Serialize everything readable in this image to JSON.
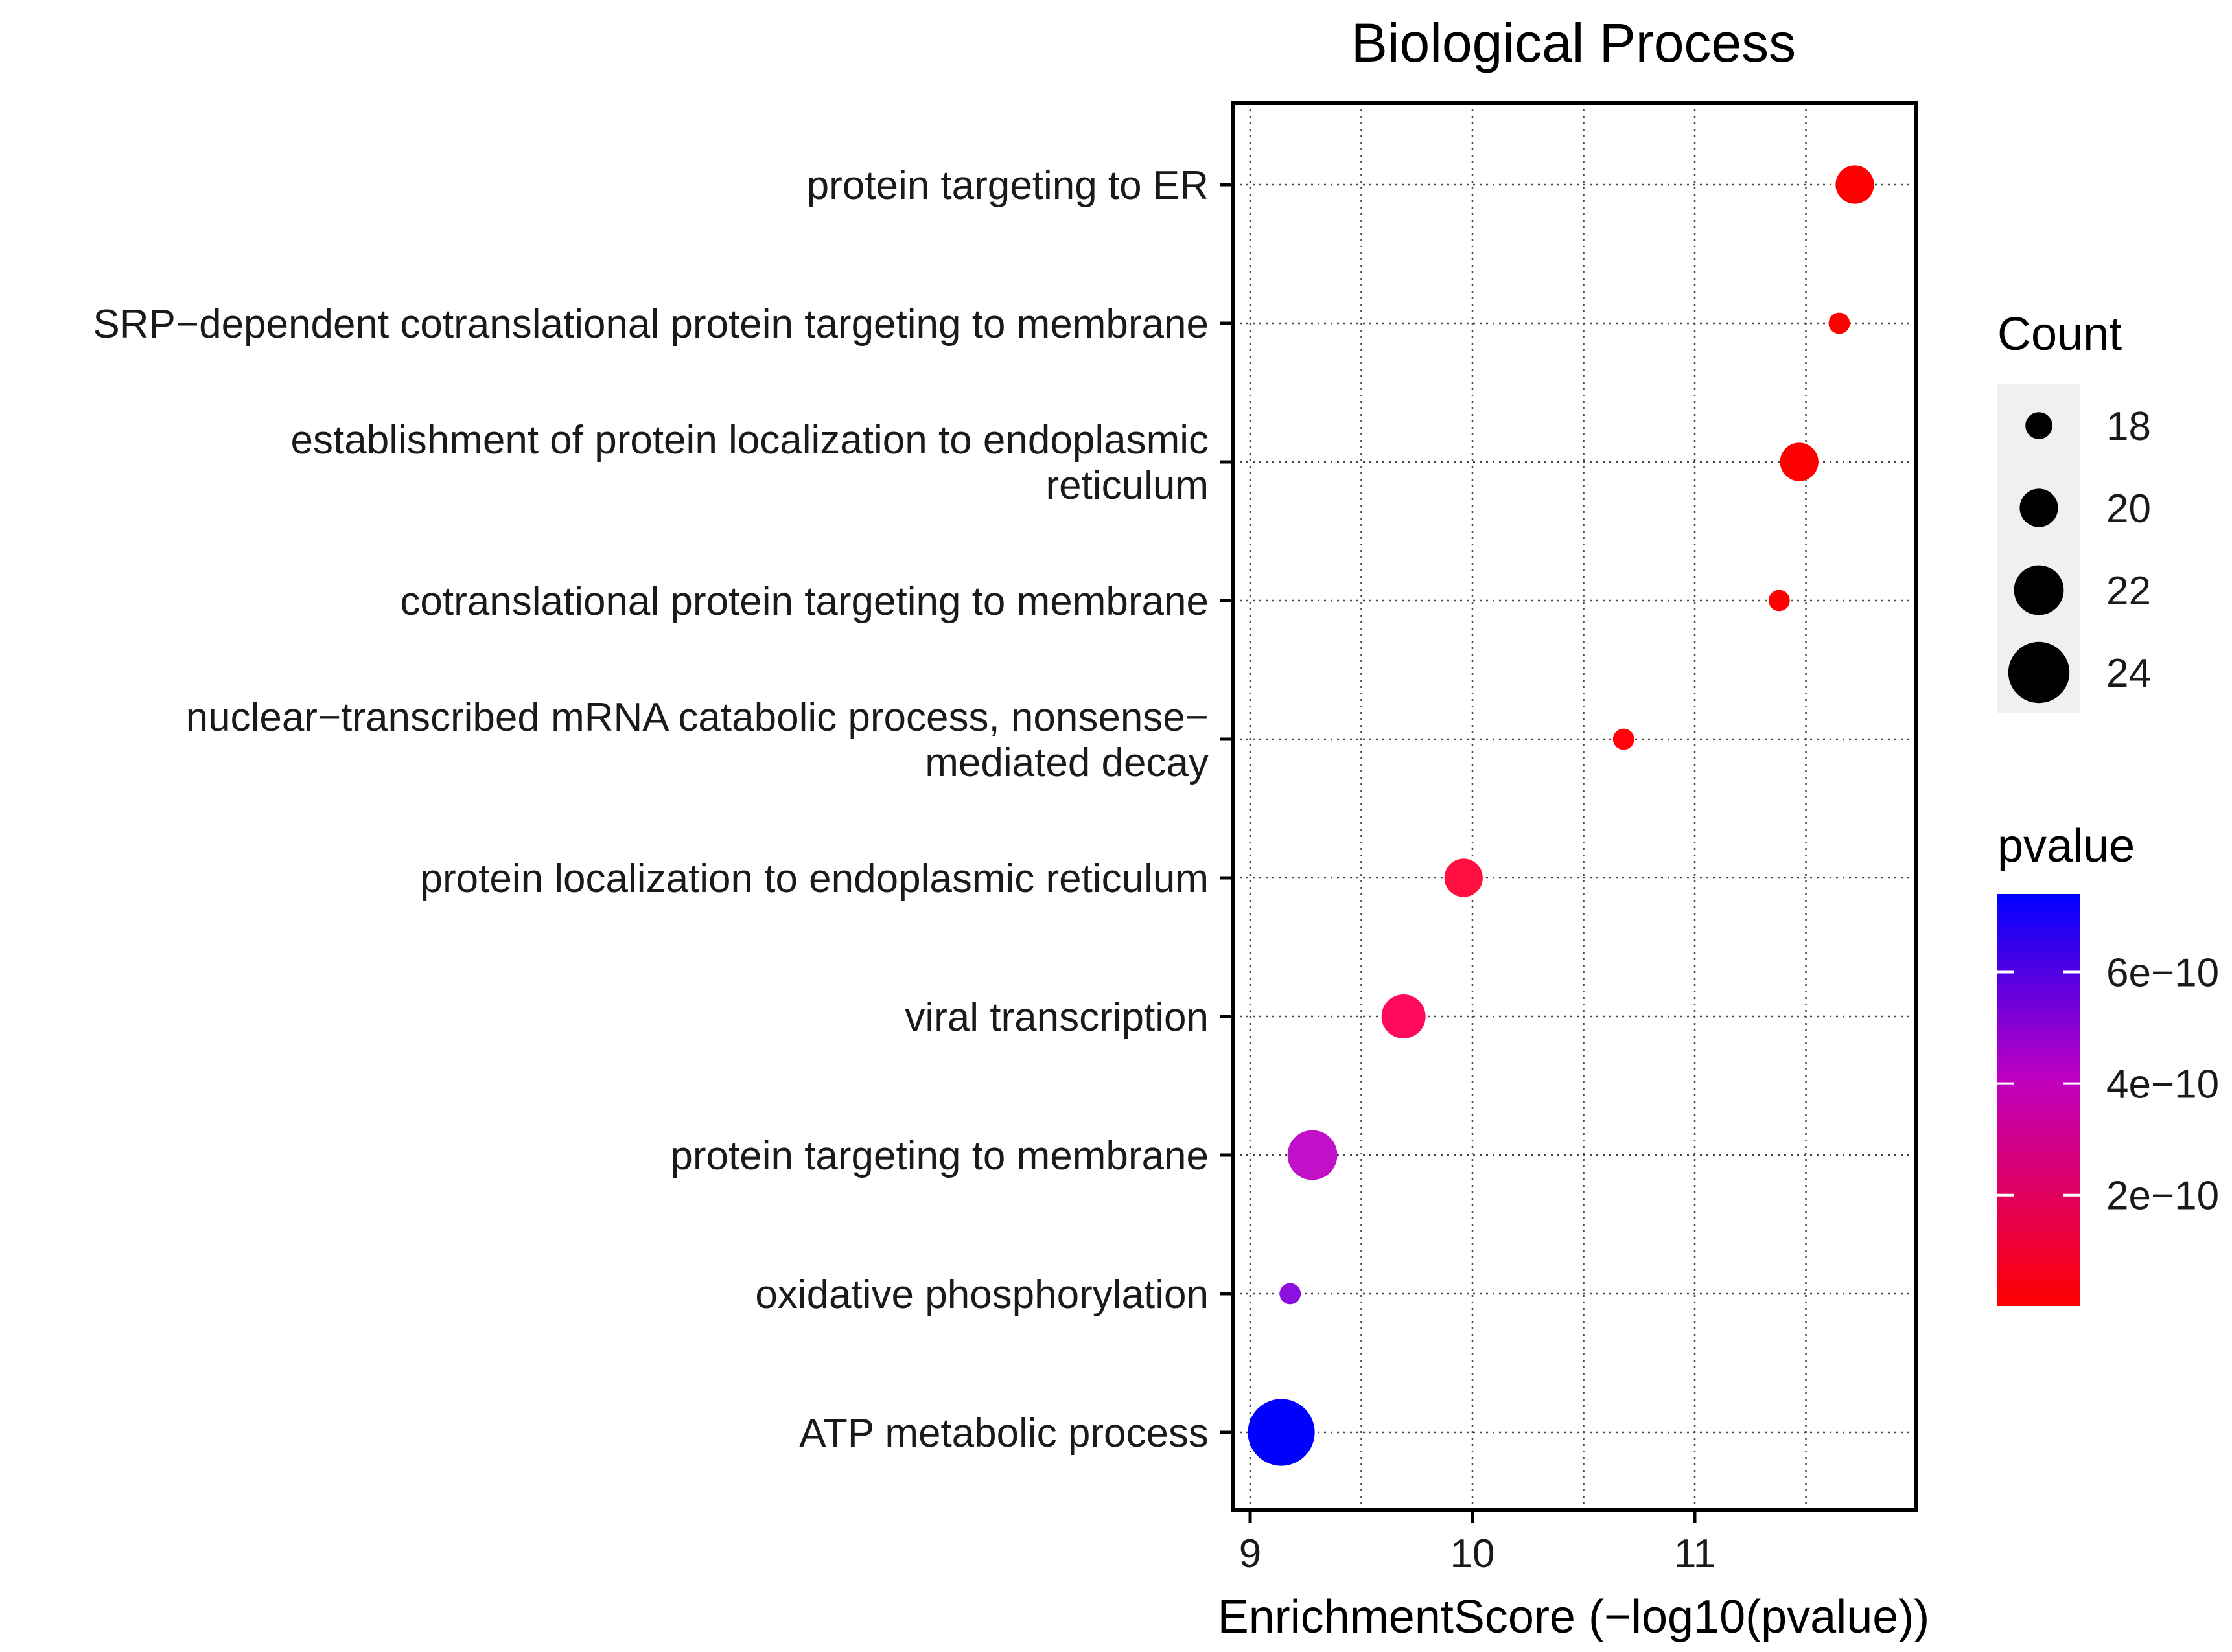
{
  "chart_data": {
    "type": "scatter",
    "title": "Biological Process",
    "xlabel": "EnrichmentScore (−log10(pvalue))",
    "ylabel": "",
    "xlim": [
      8.91,
      11.98
    ],
    "x_ticks": [
      9,
      10,
      11
    ],
    "x_tick_labels": [
      "9",
      "10",
      "11"
    ],
    "grid": true,
    "points": [
      {
        "term": "protein targeting to ER",
        "lines": [
          "protein targeting to ER"
        ],
        "x": 11.72,
        "count": 20,
        "pvalue": 1.9e-12,
        "color": "#ff0000"
      },
      {
        "term": "SRP-dependent cotranslational protein targeting to membrane",
        "lines": [
          "SRP−dependent cotranslational protein targeting to membrane"
        ],
        "x": 11.65,
        "count": 17,
        "pvalue": 2.2e-12,
        "color": "#ff0000"
      },
      {
        "term": "establishment of protein localization to endoplasmic reticulum",
        "lines": [
          "establishment of protein localization to endoplasmic",
          "reticulum"
        ],
        "x": 11.47,
        "count": 20,
        "pvalue": 3.4e-12,
        "color": "#ff0000"
      },
      {
        "term": "cotranslational protein targeting to membrane",
        "lines": [
          "cotranslational protein targeting to membrane"
        ],
        "x": 11.38,
        "count": 17,
        "pvalue": 4.2e-12,
        "color": "#ff0000"
      },
      {
        "term": "nuclear-transcribed mRNA catabolic process, nonsense-mediated decay",
        "lines": [
          "nuclear−transcribed mRNA catabolic process, nonsense−",
          "mediated decay"
        ],
        "x": 10.68,
        "count": 17,
        "pvalue": 2.1e-11,
        "color": "#ff0408"
      },
      {
        "term": "protein localization to endoplasmic reticulum",
        "lines": [
          "protein localization to endoplasmic reticulum"
        ],
        "x": 9.96,
        "count": 20,
        "pvalue": 1.1e-10,
        "color": "#ff1040"
      },
      {
        "term": "viral transcription",
        "lines": [
          "viral transcription"
        ],
        "x": 9.69,
        "count": 21,
        "pvalue": 2e-10,
        "color": "#ff0a5a"
      },
      {
        "term": "protein targeting to membrane",
        "lines": [
          "protein targeting to membrane"
        ],
        "x": 9.28,
        "count": 22,
        "pvalue": 5.2e-10,
        "color": "#c010c8"
      },
      {
        "term": "oxidative phosphorylation",
        "lines": [
          "oxidative phosphorylation"
        ],
        "x": 9.18,
        "count": 17,
        "pvalue": 6.6e-10,
        "color": "#8c10e0"
      },
      {
        "term": "ATP metabolic process",
        "lines": [
          "ATP metabolic process"
        ],
        "x": 9.14,
        "count": 25,
        "pvalue": 7.3e-10,
        "color": "#0000ff"
      }
    ],
    "size_legend": {
      "title": "Count",
      "entries": [
        {
          "label": "18",
          "value": 18
        },
        {
          "label": "20",
          "value": 20
        },
        {
          "label": "22",
          "value": 22
        },
        {
          "label": "24",
          "value": 24
        }
      ]
    },
    "color_legend": {
      "title": "pvalue",
      "low_color": "#ff0000",
      "mid_color": "#c000c0",
      "high_color": "#0000ff",
      "range": [
        1e-12,
        7.4e-10
      ],
      "ticks": [
        {
          "label": "2e−10",
          "value": 2e-10
        },
        {
          "label": "4e−10",
          "value": 4e-10
        },
        {
          "label": "6e−10",
          "value": 6e-10
        }
      ]
    }
  }
}
